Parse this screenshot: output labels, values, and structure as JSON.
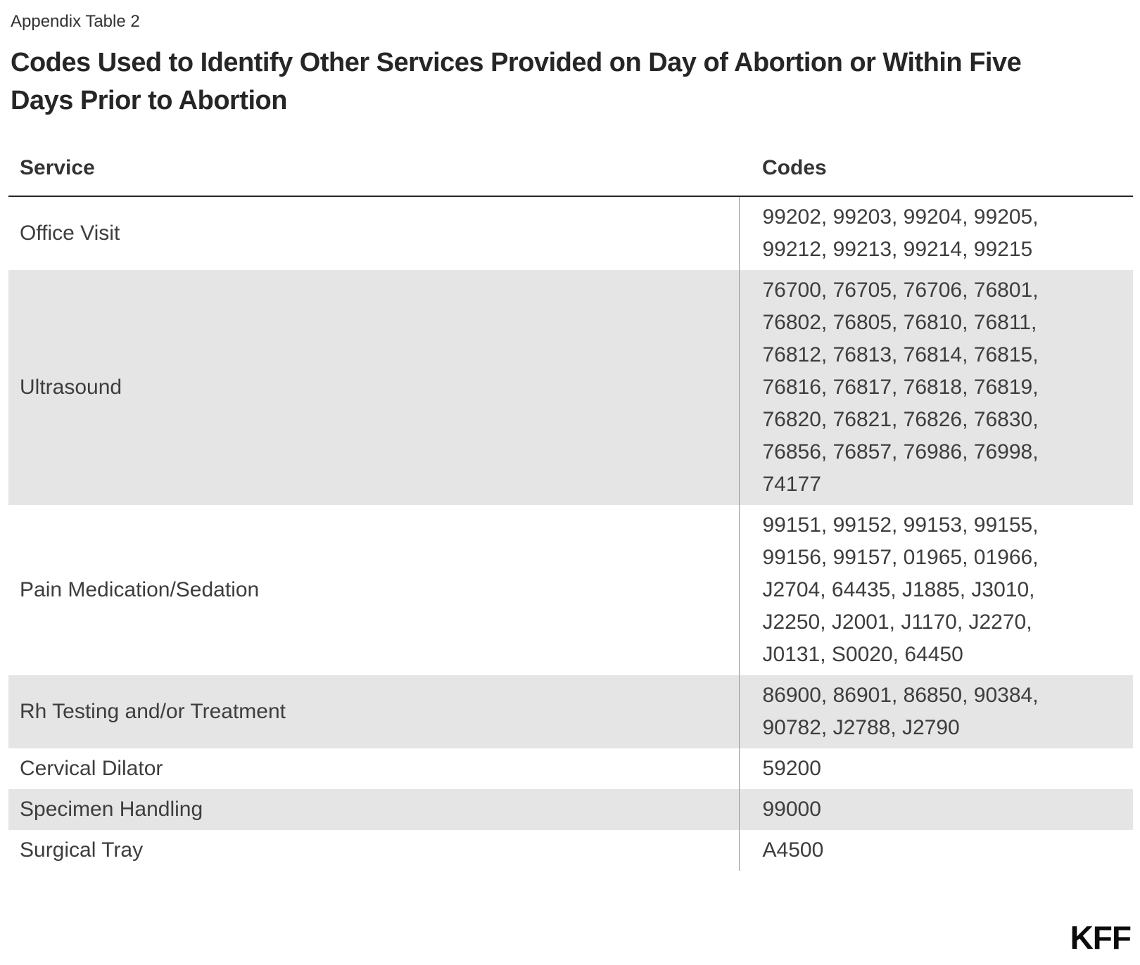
{
  "eyebrow": "Appendix Table 2",
  "title": "Codes Used to Identify Other Services Provided on Day of Abortion or Within Five\nDays Prior to Abortion",
  "table": {
    "headers": {
      "service": "Service",
      "codes": "Codes"
    },
    "rows": [
      {
        "service": "Office Visit",
        "codes": "99202, 99203, 99204, 99205,\n99212, 99213, 99214, 99215"
      },
      {
        "service": "Ultrasound",
        "codes": "76700, 76705, 76706, 76801,\n76802, 76805, 76810, 76811,\n76812, 76813, 76814, 76815,\n76816, 76817, 76818, 76819,\n76820, 76821, 76826, 76830,\n76856, 76857, 76986, 76998,\n74177"
      },
      {
        "service": "Pain Medication/Sedation",
        "codes": "99151, 99152, 99153, 99155,\n99156, 99157, 01965, 01966,\nJ2704, 64435, J1885, J3010,\nJ2250, J2001, J1170, J2270,\nJ0131, S0020, 64450"
      },
      {
        "service": "Rh Testing and/or Treatment",
        "codes": "86900, 86901, 86850, 90384,\n90782, J2788, J2790"
      },
      {
        "service": "Cervical Dilator",
        "codes": "59200"
      },
      {
        "service": "Specimen Handling",
        "codes": "99000"
      },
      {
        "service": "Surgical Tray",
        "codes": "A4500"
      }
    ]
  },
  "branding": {
    "logo": "KFF"
  },
  "colors": {
    "stripe": "#e5e5e5",
    "header_rule": "#262626",
    "column_divider": "#999999",
    "text": "#3d3d3d",
    "logo": "#0b0b0b"
  },
  "chart_data": {
    "type": "table",
    "subtitle": "Appendix Table 2",
    "title": "Codes Used to Identify Other Services Provided on Day of Abortion or Within Five Days Prior to Abortion",
    "columns": [
      "Service",
      "Codes"
    ],
    "rows": [
      [
        "Office Visit",
        "99202, 99203, 99204, 99205, 99212, 99213, 99214, 99215"
      ],
      [
        "Ultrasound",
        "76700, 76705, 76706, 76801, 76802, 76805, 76810, 76811, 76812, 76813, 76814, 76815, 76816, 76817, 76818, 76819, 76820, 76821, 76826, 76830, 76856, 76857, 76986, 76998, 74177"
      ],
      [
        "Pain Medication/Sedation",
        "99151, 99152, 99153, 99155, 99156, 99157, 01965, 01966, J2704, 64435, J1885, J3010, J2250, J2001, J1170, J2270, J0131, S0020, 64450"
      ],
      [
        "Rh Testing and/or Treatment",
        "86900, 86901, 86850, 90384, 90782, J2788, J2790"
      ],
      [
        "Cervical Dilator",
        "59200"
      ],
      [
        "Specimen Handling",
        "99000"
      ],
      [
        "Surgical Tray",
        "A4500"
      ]
    ],
    "layout_hints": {
      "striped_rows": true,
      "grid": "header-rule-and-column-divider-only",
      "branding": "KFF bottom-right"
    }
  }
}
